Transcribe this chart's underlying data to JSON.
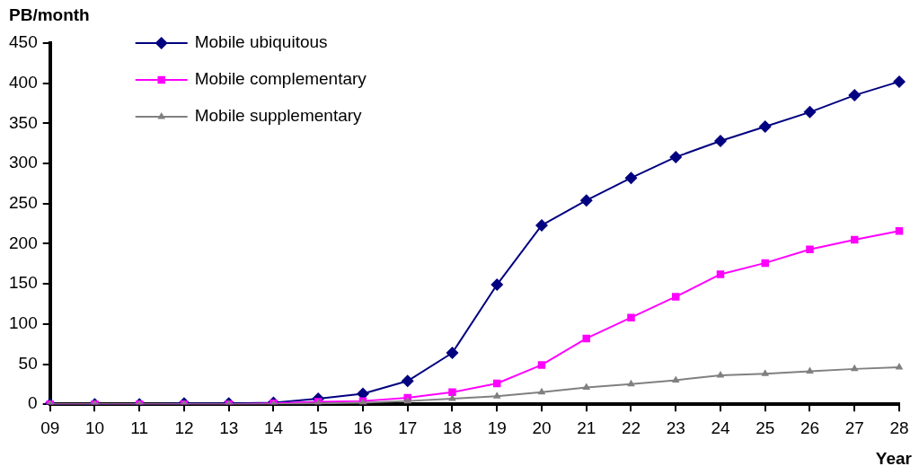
{
  "chart_data": {
    "type": "line",
    "ylabel": "PB/month",
    "xlabel": "Year",
    "categories": [
      "09",
      "10",
      "11",
      "12",
      "13",
      "14",
      "15",
      "16",
      "17",
      "18",
      "19",
      "20",
      "21",
      "22",
      "23",
      "24",
      "25",
      "26",
      "27",
      "28"
    ],
    "series": [
      {
        "name": "Mobile ubiquitous",
        "color": "#000080",
        "marker": "diamond",
        "values": [
          0,
          0,
          0,
          1,
          1,
          2,
          7,
          13,
          29,
          64,
          149,
          223,
          254,
          282,
          308,
          328,
          346,
          364,
          385,
          402
        ]
      },
      {
        "name": "Mobile complementary",
        "color": "#ff00ff",
        "marker": "square",
        "values": [
          0,
          0,
          0,
          0,
          0,
          1,
          3,
          4,
          8,
          15,
          26,
          49,
          82,
          108,
          134,
          162,
          176,
          193,
          205,
          216
        ]
      },
      {
        "name": "Mobile supplementary",
        "color": "#808080",
        "marker": "triangle",
        "values": [
          0,
          0,
          0,
          0,
          0,
          0,
          1,
          2,
          4,
          7,
          10,
          15,
          21,
          25,
          30,
          36,
          38,
          41,
          44,
          46
        ]
      }
    ],
    "ylim": [
      0,
      450
    ],
    "yticks": [
      0,
      50,
      100,
      150,
      200,
      250,
      300,
      350,
      400,
      450
    ],
    "grid": false,
    "legend": "top left",
    "line_style": "solid"
  }
}
